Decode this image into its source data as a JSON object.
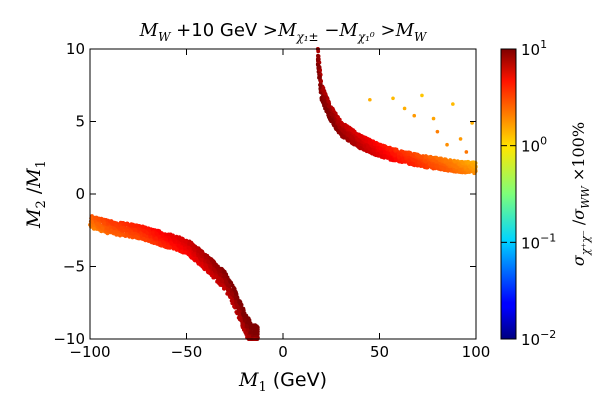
{
  "chart_data": {
    "type": "scatter",
    "title": "M_W +10 GeV >M_χ1± −M_χ10 >M_W",
    "title_parts": {
      "mw1": "M",
      "mw1_sub": "W",
      "gev": " +10 GeV >",
      "mch": "M",
      "mch_sub": "χ₁±",
      "minus": " −",
      "mn": "M",
      "mn_sub": "χ₁⁰",
      "gt": " >",
      "mw2": "M",
      "mw2_sub": "W"
    },
    "xlabel": "M_1 (GeV)",
    "xlabel_parts": {
      "m": "M",
      "sub": "1",
      "unit": "  (GeV)"
    },
    "ylabel": "M_2/M_1",
    "ylabel_parts": {
      "m2": "M",
      "s2": "2",
      "slash": " /",
      "m1": "M",
      "s1": "1"
    },
    "xlim": [
      -100,
      100
    ],
    "ylim": [
      -10,
      10
    ],
    "xticks": [
      "−100",
      "−50",
      "0",
      "50",
      "100"
    ],
    "xtick_values": [
      -100,
      -50,
      0,
      50,
      100
    ],
    "yticks": [
      "−10",
      "−5",
      "0",
      "5",
      "10"
    ],
    "ytick_values": [
      -10,
      -5,
      0,
      5,
      10
    ],
    "colorbar": {
      "label": "σ_χ+χ− / σ_WW ×100%",
      "scale": "log",
      "range": [
        0.01,
        10
      ],
      "ticks": [
        {
          "value": 0.01,
          "base": "10",
          "exp": "−2"
        },
        {
          "value": 0.1,
          "base": "10",
          "exp": "−1"
        },
        {
          "value": 1,
          "base": "10",
          "exp": "0"
        },
        {
          "value": 10,
          "base": "10",
          "exp": "1"
        }
      ],
      "colormap": "jet",
      "label_parts": {
        "s": "σ",
        "s_sub": "χ⁺χ⁻",
        "slash": " /",
        "s2": "σ",
        "s2_sub": "WW",
        "tail": " ×100%"
      }
    },
    "series": [
      {
        "name": "negative M1 branch (M2/M1 < 0)",
        "band": "outer edge M2/M1 ≈ -1.9 at M1=-100 to ≈ -8.5 at M1=-15; inner edge ≈ -2.5 at M1=-100 to ≈ -10 at M1=-22",
        "x_range": [
          -100,
          -13
        ],
        "color_range": [
          1,
          10
        ],
        "sample_points": [
          {
            "x": -100,
            "y": -1.9,
            "c": 2.0
          },
          {
            "x": -90,
            "y": -2.3,
            "c": 2.5
          },
          {
            "x": -75,
            "y": -2.6,
            "c": 3.0
          },
          {
            "x": -60,
            "y": -3.2,
            "c": 4.0
          },
          {
            "x": -50,
            "y": -3.6,
            "c": 5.0
          },
          {
            "x": -40,
            "y": -4.7,
            "c": 6.5
          },
          {
            "x": -30,
            "y": -6.0,
            "c": 8.0
          },
          {
            "x": -25,
            "y": -7.2,
            "c": 8.5
          },
          {
            "x": -20,
            "y": -8.8,
            "c": 9.0
          },
          {
            "x": -16,
            "y": -9.8,
            "c": 9.5
          }
        ]
      },
      {
        "name": "positive M1 branch (M2/M1 > 0)",
        "band": "inner edge ≈ 10 at M1=18 to ≈ 1.7 at M1=100; outer edge ≈ 8 at M1=26 to ≈ 2.3 at M1=100; sparse scatter up to ≈ 6 near M1=50-100",
        "x_range": [
          18,
          100
        ],
        "color_range": [
          1,
          10
        ],
        "sample_points": [
          {
            "x": 18,
            "y": 9.5,
            "c": 9.5
          },
          {
            "x": 20,
            "y": 7.0,
            "c": 9.0
          },
          {
            "x": 25,
            "y": 5.5,
            "c": 8.5
          },
          {
            "x": 30,
            "y": 4.5,
            "c": 7.5
          },
          {
            "x": 40,
            "y": 3.6,
            "c": 6.0
          },
          {
            "x": 50,
            "y": 3.0,
            "c": 4.5
          },
          {
            "x": 60,
            "y": 2.6,
            "c": 3.5
          },
          {
            "x": 75,
            "y": 2.2,
            "c": 2.5
          },
          {
            "x": 90,
            "y": 1.9,
            "c": 1.8
          },
          {
            "x": 100,
            "y": 1.8,
            "c": 1.4
          }
        ],
        "sparse_points": [
          {
            "x": 45,
            "y": 6.5,
            "c": 1.3
          },
          {
            "x": 57,
            "y": 6.6,
            "c": 1.2
          },
          {
            "x": 63,
            "y": 5.9,
            "c": 1.3
          },
          {
            "x": 68,
            "y": 5.4,
            "c": 1.5
          },
          {
            "x": 72,
            "y": 6.8,
            "c": 1.1
          },
          {
            "x": 78,
            "y": 5.2,
            "c": 1.4
          },
          {
            "x": 80,
            "y": 4.3,
            "c": 1.8
          },
          {
            "x": 85,
            "y": 3.4,
            "c": 1.6
          },
          {
            "x": 88,
            "y": 6.2,
            "c": 1.2
          },
          {
            "x": 92,
            "y": 3.8,
            "c": 1.5
          },
          {
            "x": 95,
            "y": 2.9,
            "c": 1.9
          },
          {
            "x": 98,
            "y": 4.9,
            "c": 1.3
          }
        ]
      }
    ]
  }
}
